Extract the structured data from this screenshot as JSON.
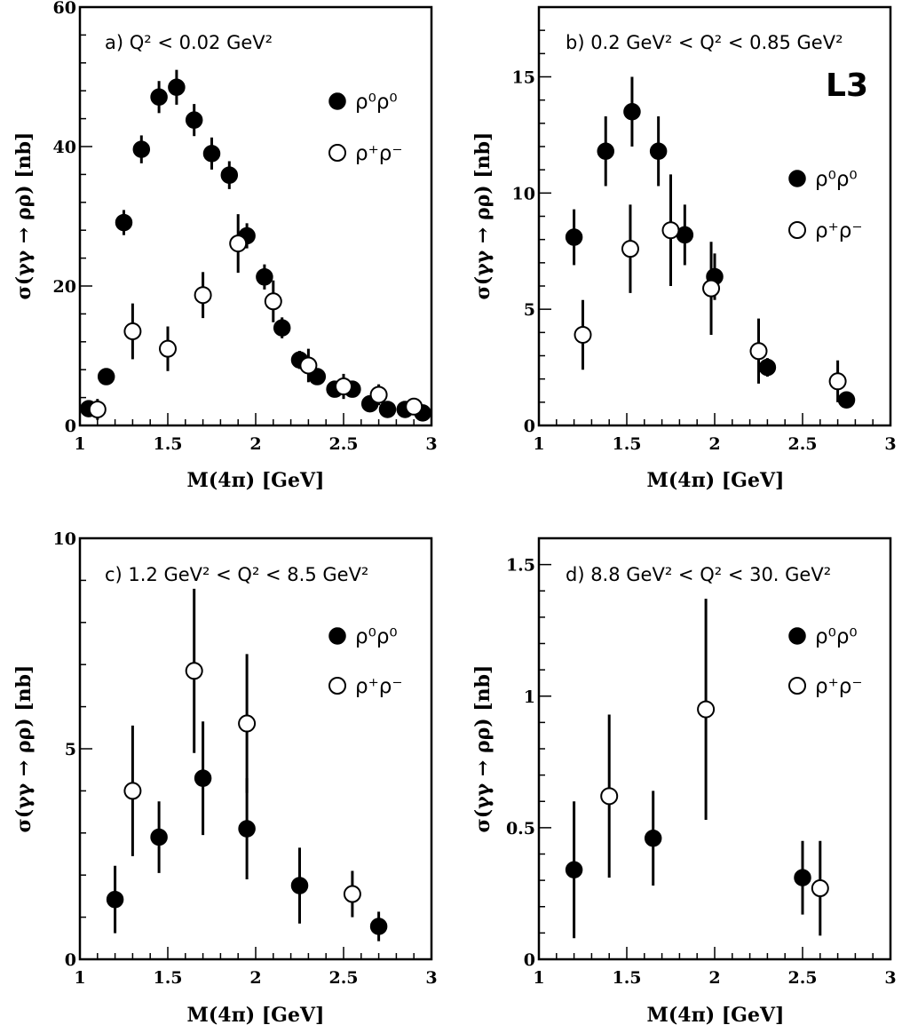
{
  "figure": {
    "logo": "L3",
    "x_axis_title": "M(4π) [GeV]",
    "y_axis_title": "σ(γγ → ρρ) [nb]"
  },
  "chart_data": [
    {
      "type": "scatter",
      "panel": "a",
      "label": "a) Q² < 0.02 GeV²",
      "xlabel": "M(4π) [GeV]",
      "ylabel": "σ(γγ → ρρ) [nb]",
      "xlim": [
        1,
        3
      ],
      "ylim": [
        0,
        60
      ],
      "xticks": [
        1,
        1.5,
        2,
        2.5,
        3
      ],
      "xtick_labels": [
        "1",
        "1.5",
        "2",
        "2.5",
        "3"
      ],
      "yticks": [
        0,
        20,
        40,
        60
      ],
      "ytick_labels": [
        "0",
        "20",
        "40",
        "60"
      ],
      "legend_position": "top-right",
      "series": [
        {
          "name": "ρ⁰ρ⁰",
          "marker": "filled",
          "x": [
            1.05,
            1.15,
            1.25,
            1.35,
            1.45,
            1.55,
            1.65,
            1.75,
            1.85,
            1.95,
            2.05,
            2.15,
            2.25,
            2.35,
            2.45,
            2.55,
            2.65,
            2.75,
            2.85,
            2.95
          ],
          "y": [
            2.4,
            7.0,
            29.1,
            39.6,
            47.1,
            48.5,
            43.8,
            39.0,
            35.9,
            27.2,
            21.3,
            14.0,
            9.4,
            7.0,
            5.2,
            5.2,
            3.1,
            2.3,
            2.3,
            1.8
          ],
          "err": [
            1.0,
            1.0,
            1.8,
            2.0,
            2.3,
            2.5,
            2.3,
            2.3,
            2.0,
            1.8,
            1.8,
            1.5,
            1.3,
            1.0,
            1.0,
            1.0,
            0.8,
            0.8,
            0.8,
            0.8
          ]
        },
        {
          "name": "ρ⁺ρ⁻",
          "marker": "open",
          "x": [
            1.1,
            1.3,
            1.5,
            1.7,
            1.9,
            2.1,
            2.3,
            2.5,
            2.7,
            2.9
          ],
          "y": [
            2.3,
            13.5,
            11.0,
            18.7,
            26.1,
            17.8,
            8.6,
            5.6,
            4.4,
            2.7
          ],
          "err": [
            1.5,
            4.0,
            3.2,
            3.3,
            4.2,
            3.0,
            2.4,
            1.8,
            1.5,
            1.0
          ]
        }
      ]
    },
    {
      "type": "scatter",
      "panel": "b",
      "label": "b) 0.2 GeV² < Q² < 0.85 GeV²",
      "xlabel": "M(4π) [GeV]",
      "ylabel": "σ(γγ → ρρ) [nb]",
      "xlim": [
        1,
        3
      ],
      "ylim": [
        0,
        18
      ],
      "xticks": [
        1,
        1.5,
        2,
        2.5,
        3
      ],
      "xtick_labels": [
        "1",
        "1.5",
        "2",
        "2.5",
        "3"
      ],
      "yticks": [
        0,
        5,
        10,
        15
      ],
      "ytick_labels": [
        "0",
        "5",
        "10",
        "15"
      ],
      "legend_position": "right",
      "series": [
        {
          "name": "ρ⁰ρ⁰",
          "marker": "filled",
          "x": [
            1.2,
            1.38,
            1.53,
            1.68,
            1.83,
            2.0,
            2.3,
            2.75
          ],
          "y": [
            8.1,
            11.8,
            13.5,
            11.8,
            8.2,
            6.4,
            2.5,
            1.1
          ],
          "err": [
            1.2,
            1.5,
            1.5,
            1.5,
            1.3,
            1.0,
            0.4,
            0.3
          ]
        },
        {
          "name": "ρ⁺ρ⁻",
          "marker": "open",
          "x": [
            1.25,
            1.52,
            1.75,
            1.98,
            2.25,
            2.7
          ],
          "y": [
            3.9,
            7.6,
            8.4,
            5.9,
            3.2,
            1.9
          ],
          "err": [
            1.5,
            1.9,
            2.4,
            2.0,
            1.4,
            0.9
          ]
        }
      ]
    },
    {
      "type": "scatter",
      "panel": "c",
      "label": "c) 1.2 GeV² < Q² < 8.5 GeV²",
      "xlabel": "M(4π) [GeV]",
      "ylabel": "σ(γγ → ρρ) [nb]",
      "xlim": [
        1,
        3
      ],
      "ylim": [
        0,
        10
      ],
      "xticks": [
        1,
        1.5,
        2,
        2.5,
        3
      ],
      "xtick_labels": [
        "1",
        "1.5",
        "2",
        "2.5",
        "3"
      ],
      "yticks": [
        0,
        5,
        10
      ],
      "ytick_labels": [
        "0",
        "5",
        "10"
      ],
      "legend_position": "top-right",
      "series": [
        {
          "name": "ρ⁰ρ⁰",
          "marker": "filled",
          "x": [
            1.2,
            1.45,
            1.7,
            1.95,
            2.25,
            2.7
          ],
          "y": [
            1.42,
            2.9,
            4.3,
            3.1,
            1.75,
            0.78
          ],
          "err": [
            0.8,
            0.85,
            1.35,
            1.2,
            0.9,
            0.35
          ]
        },
        {
          "name": "ρ⁺ρ⁻",
          "marker": "open",
          "x": [
            1.3,
            1.65,
            1.95,
            2.55
          ],
          "y": [
            4.0,
            6.85,
            5.6,
            1.55
          ],
          "err": [
            1.55,
            1.95,
            1.65,
            0.55
          ]
        }
      ]
    },
    {
      "type": "scatter",
      "panel": "d",
      "label": "d) 8.8 GeV² < Q² < 30. GeV²",
      "xlabel": "M(4π) [GeV]",
      "ylabel": "σ(γγ → ρρ) [nb]",
      "xlim": [
        1,
        3
      ],
      "ylim": [
        0,
        1.6
      ],
      "xticks": [
        1,
        1.5,
        2,
        2.5,
        3
      ],
      "xtick_labels": [
        "1",
        "1.5",
        "2",
        "2.5",
        "3"
      ],
      "yticks": [
        0,
        0.5,
        1,
        1.5
      ],
      "ytick_labels": [
        "0",
        "0.5",
        "1",
        "1.5"
      ],
      "legend_position": "top-right",
      "series": [
        {
          "name": "ρ⁰ρ⁰",
          "marker": "filled",
          "x": [
            1.2,
            1.65,
            2.5
          ],
          "y": [
            0.34,
            0.46,
            0.31
          ],
          "err": [
            0.26,
            0.18,
            0.14
          ]
        },
        {
          "name": "ρ⁺ρ⁻",
          "marker": "open",
          "x": [
            1.4,
            1.95,
            2.6
          ],
          "y": [
            0.62,
            0.95,
            0.27
          ],
          "err": [
            0.31,
            0.42,
            0.18
          ]
        }
      ]
    }
  ]
}
